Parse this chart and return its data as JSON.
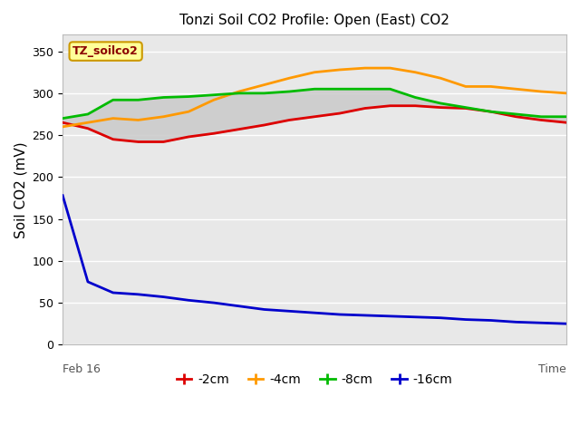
{
  "title": "Tonzi Soil CO2 Profile: Open (East) CO2",
  "ylabel": "Soil CO2 (mV)",
  "annotation": "TZ_soilco2",
  "ylim": [
    0,
    370
  ],
  "yticks": [
    0,
    50,
    100,
    150,
    200,
    250,
    300,
    350
  ],
  "fig_bg_color": "#ffffff",
  "plot_bg_color": "#e8e8e8",
  "grid_color": "#ffffff",
  "series": {
    "2cm": {
      "color": "#dd0000",
      "x": [
        0,
        1,
        2,
        3,
        4,
        5,
        6,
        7,
        8,
        9,
        10,
        11,
        12,
        13,
        14,
        15,
        16,
        17,
        18,
        19,
        20
      ],
      "y": [
        265,
        258,
        245,
        242,
        242,
        248,
        252,
        257,
        262,
        268,
        272,
        276,
        282,
        285,
        285,
        283,
        282,
        278,
        272,
        268,
        265
      ]
    },
    "4cm": {
      "color": "#ff9900",
      "x": [
        0,
        1,
        2,
        3,
        4,
        5,
        6,
        7,
        8,
        9,
        10,
        11,
        12,
        13,
        14,
        15,
        16,
        17,
        18,
        19,
        20
      ],
      "y": [
        260,
        265,
        270,
        268,
        272,
        278,
        292,
        302,
        310,
        318,
        325,
        328,
        330,
        330,
        325,
        318,
        308,
        308,
        305,
        302,
        300
      ]
    },
    "8cm": {
      "color": "#00bb00",
      "x": [
        0,
        1,
        2,
        3,
        4,
        5,
        6,
        7,
        8,
        9,
        10,
        11,
        12,
        13,
        14,
        15,
        16,
        17,
        18,
        19,
        20
      ],
      "y": [
        270,
        275,
        292,
        292,
        295,
        296,
        298,
        300,
        300,
        302,
        305,
        305,
        305,
        305,
        295,
        288,
        283,
        278,
        275,
        272,
        272
      ]
    },
    "16cm": {
      "color": "#0000cc",
      "x": [
        0,
        1,
        2,
        3,
        4,
        5,
        6,
        7,
        8,
        9,
        10,
        11,
        12,
        13,
        14,
        15,
        16,
        17,
        18,
        19,
        20
      ],
      "y": [
        178,
        75,
        62,
        60,
        57,
        53,
        50,
        46,
        42,
        40,
        38,
        36,
        35,
        34,
        33,
        32,
        30,
        29,
        27,
        26,
        25
      ]
    }
  },
  "shade_fill_color": "#cccccc",
  "shade_alpha": 0.9,
  "legend": [
    {
      "label": "-2cm",
      "color": "#dd0000"
    },
    {
      "label": "-4cm",
      "color": "#ff9900"
    },
    {
      "label": "-8cm",
      "color": "#00bb00"
    },
    {
      "label": "-16cm",
      "color": "#0000cc"
    }
  ],
  "annotation_facecolor": "#ffff99",
  "annotation_edgecolor": "#cc9900",
  "annotation_textcolor": "#8b0000",
  "feb16_label": "Feb 16",
  "time_label": "Time"
}
